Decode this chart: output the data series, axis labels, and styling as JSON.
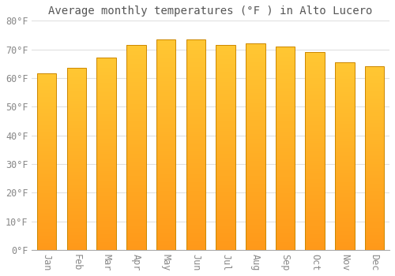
{
  "title": "Average monthly temperatures (°F ) in Alto Lucero",
  "months": [
    "Jan",
    "Feb",
    "Mar",
    "Apr",
    "May",
    "Jun",
    "Jul",
    "Aug",
    "Sep",
    "Oct",
    "Nov",
    "Dec"
  ],
  "values": [
    61.5,
    63.5,
    67.0,
    71.5,
    73.5,
    73.5,
    71.5,
    72.0,
    71.0,
    69.0,
    65.5,
    64.0
  ],
  "bar_color_top": "#FFB300",
  "bar_color_bottom": "#FF9800",
  "bar_edge_color": "#CC8800",
  "background_color": "#ffffff",
  "grid_color": "#e0e0e0",
  "ylim": [
    0,
    80
  ],
  "ytick_step": 10,
  "title_fontsize": 10,
  "tick_fontsize": 8.5,
  "font_family": "monospace",
  "bar_width": 0.65
}
